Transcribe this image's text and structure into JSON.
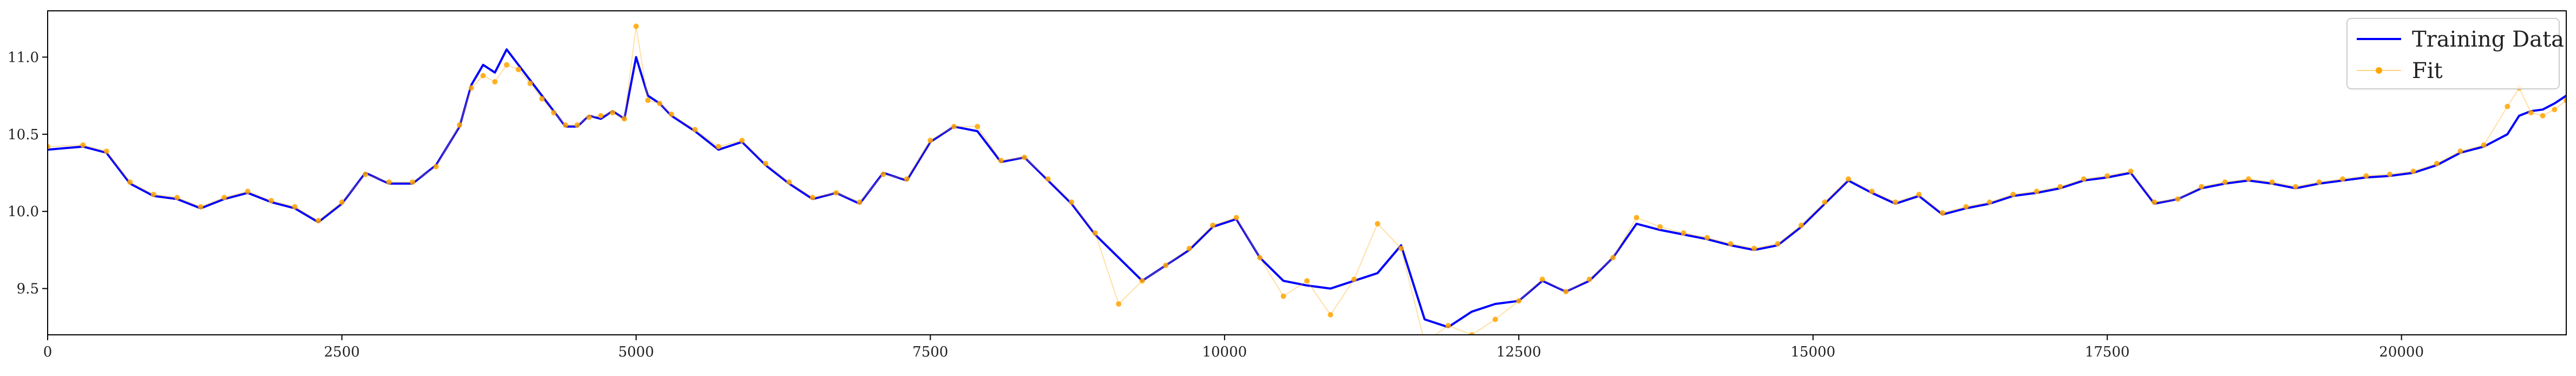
{
  "chart_data": {
    "type": "line",
    "title": "",
    "xlabel": "",
    "ylabel": "",
    "xlim": [
      0,
      21400
    ],
    "ylim": [
      9.2,
      11.3
    ],
    "grid": false,
    "legend_position": "top-right",
    "x_ticks": [
      {
        "value": 0,
        "label": "0"
      },
      {
        "value": 2500,
        "label": "2500"
      },
      {
        "value": 5000,
        "label": "5000"
      },
      {
        "value": 7500,
        "label": "7500"
      },
      {
        "value": 10000,
        "label": "10000"
      },
      {
        "value": 12500,
        "label": "12500"
      },
      {
        "value": 15000,
        "label": "15000"
      },
      {
        "value": 17500,
        "label": "17500"
      },
      {
        "value": 20000,
        "label": "20000"
      }
    ],
    "y_ticks": [
      {
        "value": 9.5,
        "label": "9.5"
      },
      {
        "value": 10.0,
        "label": "10.0"
      },
      {
        "value": 10.5,
        "label": "10.5"
      },
      {
        "value": 11.0,
        "label": "11.0"
      }
    ],
    "series": [
      {
        "name": "Training Data",
        "color": "#0000ff",
        "marker": "none",
        "x": [
          0,
          300,
          500,
          700,
          900,
          1100,
          1300,
          1500,
          1700,
          1900,
          2100,
          2300,
          2500,
          2700,
          2900,
          3100,
          3300,
          3500,
          3600,
          3700,
          3800,
          3900,
          4000,
          4100,
          4200,
          4300,
          4400,
          4500,
          4600,
          4700,
          4800,
          4900,
          5000,
          5100,
          5200,
          5300,
          5500,
          5700,
          5900,
          6100,
          6300,
          6500,
          6700,
          6900,
          7100,
          7300,
          7500,
          7700,
          7900,
          8100,
          8300,
          8500,
          8700,
          8900,
          9100,
          9300,
          9500,
          9700,
          9900,
          10100,
          10300,
          10500,
          10700,
          10900,
          11100,
          11300,
          11500,
          11700,
          11900,
          12100,
          12300,
          12500,
          12700,
          12900,
          13100,
          13300,
          13500,
          13700,
          13900,
          14100,
          14300,
          14500,
          14700,
          14900,
          15100,
          15300,
          15500,
          15700,
          15900,
          16100,
          16300,
          16500,
          16700,
          16900,
          17100,
          17300,
          17500,
          17700,
          17900,
          18100,
          18300,
          18500,
          18700,
          18900,
          19100,
          19300,
          19500,
          19700,
          19900,
          20100,
          20300,
          20500,
          20700,
          20900,
          21000,
          21100,
          21200,
          21300,
          21400
        ],
        "values": [
          10.4,
          10.42,
          10.38,
          10.18,
          10.1,
          10.08,
          10.02,
          10.08,
          10.12,
          10.06,
          10.02,
          9.93,
          10.05,
          10.25,
          10.18,
          10.18,
          10.3,
          10.55,
          10.82,
          10.95,
          10.9,
          11.05,
          10.95,
          10.85,
          10.75,
          10.65,
          10.55,
          10.55,
          10.62,
          10.6,
          10.65,
          10.6,
          11.0,
          10.75,
          10.7,
          10.62,
          10.52,
          10.4,
          10.45,
          10.3,
          10.18,
          10.08,
          10.12,
          10.05,
          10.25,
          10.2,
          10.45,
          10.55,
          10.52,
          10.32,
          10.35,
          10.2,
          10.05,
          9.85,
          9.7,
          9.55,
          9.65,
          9.75,
          9.9,
          9.95,
          9.7,
          9.55,
          9.52,
          9.5,
          9.55,
          9.6,
          9.78,
          9.3,
          9.25,
          9.35,
          9.4,
          9.42,
          9.55,
          9.48,
          9.55,
          9.7,
          9.92,
          9.88,
          9.85,
          9.82,
          9.78,
          9.75,
          9.78,
          9.9,
          10.05,
          10.2,
          10.12,
          10.05,
          10.1,
          9.98,
          10.02,
          10.05,
          10.1,
          10.12,
          10.15,
          10.2,
          10.22,
          10.25,
          10.05,
          10.08,
          10.15,
          10.18,
          10.2,
          10.18,
          10.15,
          10.18,
          10.2,
          10.22,
          10.23,
          10.25,
          10.3,
          10.38,
          10.42,
          10.5,
          10.62,
          10.65,
          10.66,
          10.7,
          10.75
        ]
      },
      {
        "name": "Fit",
        "color": "#ffa500",
        "marker": "circle",
        "x": [
          0,
          300,
          500,
          700,
          900,
          1100,
          1300,
          1500,
          1700,
          1900,
          2100,
          2300,
          2500,
          2700,
          2900,
          3100,
          3300,
          3500,
          3600,
          3700,
          3800,
          3900,
          4000,
          4100,
          4200,
          4300,
          4400,
          4500,
          4600,
          4700,
          4800,
          4900,
          5000,
          5100,
          5200,
          5300,
          5500,
          5700,
          5900,
          6100,
          6300,
          6500,
          6700,
          6900,
          7100,
          7300,
          7500,
          7700,
          7900,
          8100,
          8300,
          8500,
          8700,
          8900,
          9100,
          9300,
          9500,
          9700,
          9900,
          10100,
          10300,
          10500,
          10700,
          10900,
          11100,
          11300,
          11500,
          11700,
          11900,
          12100,
          12300,
          12500,
          12700,
          12900,
          13100,
          13300,
          13500,
          13700,
          13900,
          14100,
          14300,
          14500,
          14700,
          14900,
          15100,
          15300,
          15500,
          15700,
          15900,
          16100,
          16300,
          16500,
          16700,
          16900,
          17100,
          17300,
          17500,
          17700,
          17900,
          18100,
          18300,
          18500,
          18700,
          18900,
          19100,
          19300,
          19500,
          19700,
          19900,
          20100,
          20300,
          20500,
          20700,
          20900,
          21000,
          21100,
          21200,
          21300,
          21400
        ],
        "values": [
          10.42,
          10.43,
          10.39,
          10.19,
          10.11,
          10.09,
          10.03,
          10.09,
          10.13,
          10.07,
          10.03,
          9.94,
          10.06,
          10.24,
          10.19,
          10.19,
          10.29,
          10.56,
          10.8,
          10.88,
          10.84,
          10.95,
          10.92,
          10.83,
          10.73,
          10.64,
          10.56,
          10.56,
          10.61,
          10.62,
          10.64,
          10.6,
          11.2,
          10.72,
          10.7,
          10.63,
          10.53,
          10.42,
          10.46,
          10.31,
          10.19,
          10.09,
          10.12,
          10.06,
          10.24,
          10.21,
          10.46,
          10.55,
          10.55,
          10.33,
          10.35,
          10.21,
          10.06,
          9.86,
          9.4,
          9.55,
          9.65,
          9.76,
          9.91,
          9.96,
          9.7,
          9.45,
          9.55,
          9.33,
          9.56,
          9.92,
          9.76,
          9.15,
          9.26,
          9.2,
          9.3,
          9.42,
          9.56,
          9.48,
          9.56,
          9.7,
          9.96,
          9.9,
          9.86,
          9.83,
          9.79,
          9.76,
          9.79,
          9.91,
          10.06,
          10.21,
          10.13,
          10.06,
          10.11,
          9.99,
          10.03,
          10.06,
          10.11,
          10.13,
          10.16,
          10.21,
          10.23,
          10.26,
          10.06,
          10.08,
          10.16,
          10.19,
          10.21,
          10.19,
          10.16,
          10.19,
          10.21,
          10.23,
          10.24,
          10.26,
          10.31,
          10.39,
          10.43,
          10.68,
          10.8,
          10.64,
          10.62,
          10.66,
          10.72
        ]
      }
    ]
  }
}
